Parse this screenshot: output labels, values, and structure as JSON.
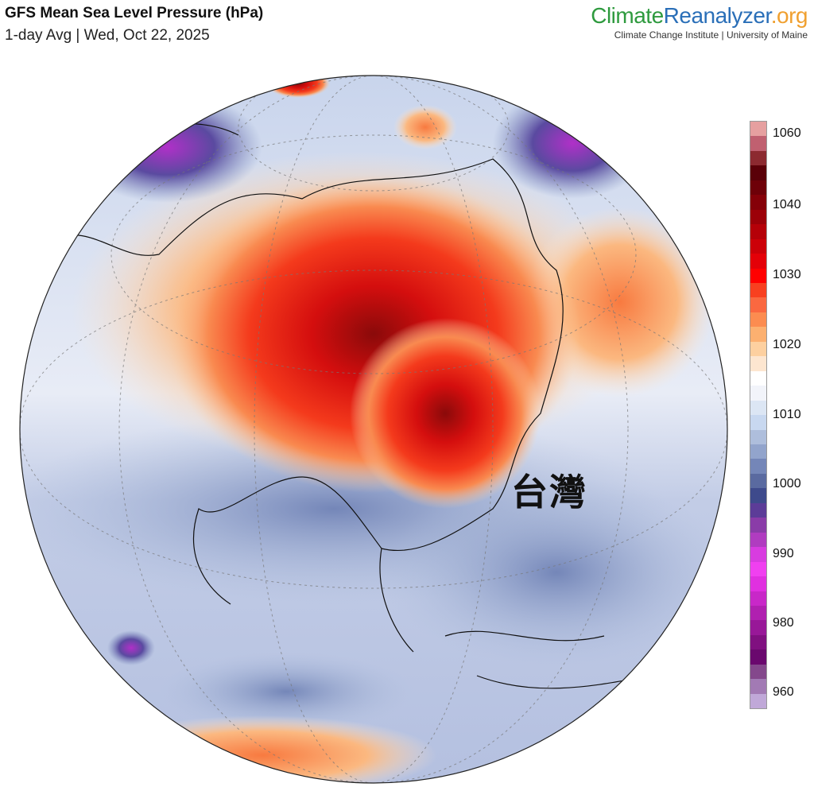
{
  "header": {
    "title": "GFS Mean Sea Level Pressure (hPa)",
    "subtitle": "1-day Avg | Wed, Oct 22, 2025"
  },
  "logo": {
    "part1": "Climate",
    "part2": "Reanalyzer",
    ".org": ".org",
    "sub": "Climate Change Institute | University of Maine"
  },
  "map": {
    "annotation": "台灣",
    "projection": "orthographic",
    "variable": "mean sea level pressure",
    "units": "hPa"
  },
  "colorbar": {
    "ticks": [
      "1060",
      "1040",
      "1030",
      "1020",
      "1010",
      "1000",
      "990",
      "980",
      "960"
    ],
    "colors": [
      "#e6a0a0",
      "#c06070",
      "#8c2a30",
      "#5a0008",
      "#6e0008",
      "#850008",
      "#9c0008",
      "#b50008",
      "#cc0008",
      "#e40008",
      "#ff0000",
      "#f84020",
      "#fa6840",
      "#fc8c50",
      "#fcb070",
      "#fdd0a0",
      "#fde6d0",
      "#ffffff",
      "#f2f4fa",
      "#dce6f4",
      "#c8d8f0",
      "#aebedc",
      "#92a4cc",
      "#7486b8",
      "#5a6aa0",
      "#3e4a8c",
      "#5c3c98",
      "#8a3ca8",
      "#b03cc0",
      "#d83ce0",
      "#f040f0",
      "#e030e0",
      "#c828c8",
      "#b020b0",
      "#981898",
      "#801080",
      "#6a086e",
      "#84488c",
      "#a27ab4",
      "#c0a8d8"
    ]
  }
}
